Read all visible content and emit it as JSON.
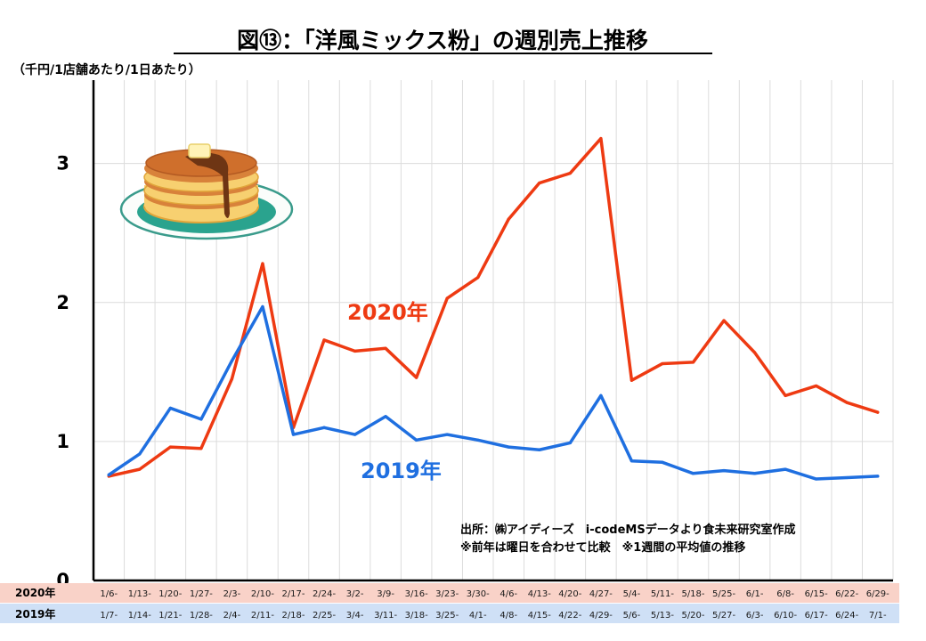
{
  "chart_data": {
    "type": "line",
    "title": "図⑬：「洋風ミックス粉」の週別売上推移",
    "unit_label": "（千円/1店舗あたり/1日あたり）",
    "y_ticks": [
      "0",
      "1",
      "2",
      "3"
    ],
    "ylim": [
      0,
      3.6
    ],
    "grid": true,
    "x_row_labels": [
      "2020年",
      "2019年"
    ],
    "categories_2020": [
      "1/6-",
      "1/13-",
      "1/20-",
      "1/27-",
      "2/3-",
      "2/10-",
      "2/17-",
      "2/24-",
      "3/2-",
      "3/9-",
      "3/16-",
      "3/23-",
      "3/30-",
      "4/6-",
      "4/13-",
      "4/20-",
      "4/27-",
      "5/4-",
      "5/11-",
      "5/18-",
      "5/25-",
      "6/1-",
      "6/8-",
      "6/15-",
      "6/22-",
      "6/29-"
    ],
    "categories_2019": [
      "1/7-",
      "1/14-",
      "1/21-",
      "1/28-",
      "2/4-",
      "2/11-",
      "2/18-",
      "2/25-",
      "3/4-",
      "3/11-",
      "3/18-",
      "3/25-",
      "4/1-",
      "4/8-",
      "4/15-",
      "4/22-",
      "4/29-",
      "5/6-",
      "5/13-",
      "5/20-",
      "5/27-",
      "6/3-",
      "6/10-",
      "6/17-",
      "6/24-",
      "7/1-"
    ],
    "series": [
      {
        "name": "2020年",
        "color": "#ee3a12",
        "values": [
          0.75,
          0.8,
          0.96,
          0.95,
          1.45,
          2.28,
          1.1,
          1.73,
          1.65,
          1.67,
          1.46,
          2.03,
          2.18,
          2.6,
          2.86,
          2.93,
          3.18,
          1.44,
          1.56,
          1.57,
          1.87,
          1.64,
          1.33,
          1.4,
          1.28,
          1.21
        ]
      },
      {
        "name": "2019年",
        "color": "#1f6fe0",
        "values": [
          0.76,
          0.91,
          1.24,
          1.16,
          1.58,
          1.97,
          1.05,
          1.1,
          1.05,
          1.18,
          1.01,
          1.05,
          1.01,
          0.96,
          0.94,
          0.99,
          1.33,
          0.86,
          0.85,
          0.77,
          0.79,
          0.77,
          0.8,
          0.73,
          0.74,
          0.75
        ]
      }
    ],
    "notes": [
      "出所：㈱アイディーズ　i-codeMSデータより食未来研究室作成",
      "※前年は曜日を合わせて比較　※1週間の平均値の推移"
    ]
  }
}
